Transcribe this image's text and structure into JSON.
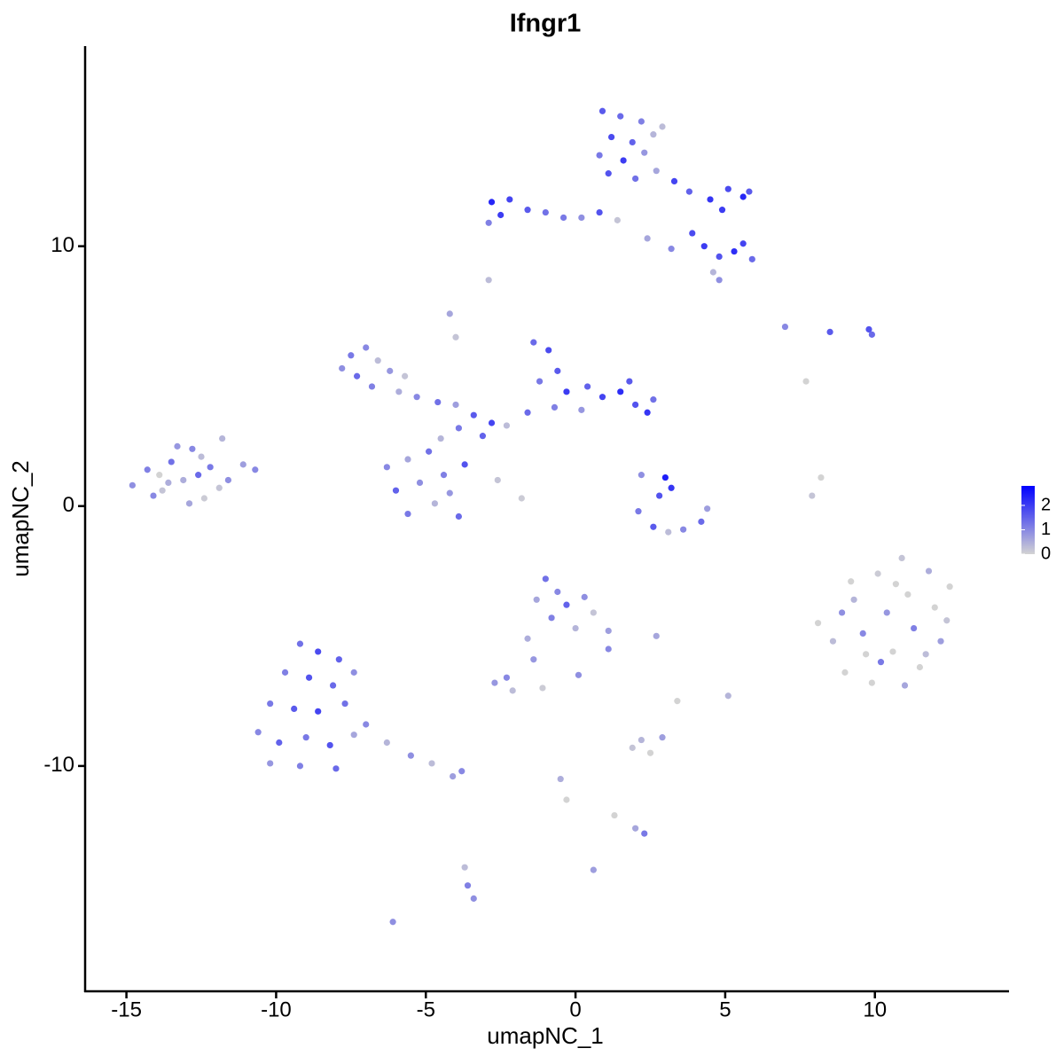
{
  "chart_data": {
    "type": "scatter",
    "title": "Ifngr1",
    "x_label": "umapNC_1",
    "y_label": "umapNC_2",
    "xlim": [
      -16.38,
      14.48
    ],
    "ylim": [
      -18.67,
      17.7
    ],
    "xticks": [
      -15,
      -10,
      -5,
      0,
      5,
      10
    ],
    "yticks": [
      -10,
      0,
      10
    ],
    "colorbar": {
      "lim": [
        0,
        2.8
      ],
      "ticks": [
        0,
        1,
        2
      ],
      "colors": [
        "#d3d3d3",
        "#0000ff"
      ]
    },
    "points": [
      {
        "x": 0.9,
        "y": 15.2,
        "value": 1.6
      },
      {
        "x": 1.5,
        "y": 15.0,
        "value": 1.4
      },
      {
        "x": 2.2,
        "y": 14.8,
        "value": 1.1
      },
      {
        "x": 1.2,
        "y": 14.2,
        "value": 1.8
      },
      {
        "x": 1.9,
        "y": 14.0,
        "value": 1.5
      },
      {
        "x": 2.6,
        "y": 14.3,
        "value": 0.4
      },
      {
        "x": 0.8,
        "y": 13.5,
        "value": 1.2
      },
      {
        "x": 1.6,
        "y": 13.3,
        "value": 2.0
      },
      {
        "x": 2.3,
        "y": 13.6,
        "value": 0.8
      },
      {
        "x": 2.9,
        "y": 14.6,
        "value": 0.3
      },
      {
        "x": 1.1,
        "y": 12.8,
        "value": 1.7
      },
      {
        "x": 2.0,
        "y": 12.6,
        "value": 1.3
      },
      {
        "x": 2.7,
        "y": 12.9,
        "value": 0.6
      },
      {
        "x": 3.3,
        "y": 12.5,
        "value": 1.9
      },
      {
        "x": 3.8,
        "y": 12.1,
        "value": 1.5
      },
      {
        "x": 4.5,
        "y": 11.8,
        "value": 2.1
      },
      {
        "x": 5.1,
        "y": 12.2,
        "value": 1.8
      },
      {
        "x": 5.6,
        "y": 11.9,
        "value": 2.3
      },
      {
        "x": 4.9,
        "y": 11.4,
        "value": 2.0
      },
      {
        "x": 5.8,
        "y": 12.1,
        "value": 1.6
      },
      {
        "x": -2.8,
        "y": 11.7,
        "value": 2.3
      },
      {
        "x": -2.5,
        "y": 11.2,
        "value": 2.0
      },
      {
        "x": -2.2,
        "y": 11.8,
        "value": 1.9
      },
      {
        "x": -1.6,
        "y": 11.4,
        "value": 1.6
      },
      {
        "x": -1.0,
        "y": 11.3,
        "value": 1.3
      },
      {
        "x": -0.4,
        "y": 11.1,
        "value": 1.2
      },
      {
        "x": 0.2,
        "y": 11.1,
        "value": 0.9
      },
      {
        "x": 0.8,
        "y": 11.3,
        "value": 1.7
      },
      {
        "x": 1.4,
        "y": 11.0,
        "value": 0.2
      },
      {
        "x": -2.9,
        "y": 10.9,
        "value": 1.1
      },
      {
        "x": 3.9,
        "y": 10.5,
        "value": 1.8
      },
      {
        "x": 4.3,
        "y": 10.0,
        "value": 2.0
      },
      {
        "x": 4.8,
        "y": 9.6,
        "value": 1.7
      },
      {
        "x": 5.3,
        "y": 9.8,
        "value": 2.2
      },
      {
        "x": 5.9,
        "y": 9.5,
        "value": 1.4
      },
      {
        "x": 5.6,
        "y": 10.1,
        "value": 1.9
      },
      {
        "x": 4.6,
        "y": 9.0,
        "value": 0.4
      },
      {
        "x": 4.8,
        "y": 8.7,
        "value": 0.9
      },
      {
        "x": 2.4,
        "y": 10.3,
        "value": 0.6
      },
      {
        "x": 3.2,
        "y": 9.9,
        "value": 1.0
      },
      {
        "x": -7.5,
        "y": 5.8,
        "value": 1.2
      },
      {
        "x": -7.0,
        "y": 6.1,
        "value": 1.0
      },
      {
        "x": -6.6,
        "y": 5.6,
        "value": 0.3
      },
      {
        "x": -7.3,
        "y": 5.0,
        "value": 1.4
      },
      {
        "x": -6.2,
        "y": 5.2,
        "value": 0.8
      },
      {
        "x": -5.7,
        "y": 5.0,
        "value": 0.2
      },
      {
        "x": -6.8,
        "y": 4.6,
        "value": 1.1
      },
      {
        "x": -5.9,
        "y": 4.4,
        "value": 0.5
      },
      {
        "x": -7.8,
        "y": 5.3,
        "value": 0.9
      },
      {
        "x": -5.3,
        "y": 4.2,
        "value": 1.0
      },
      {
        "x": -4.6,
        "y": 4.0,
        "value": 1.3
      },
      {
        "x": -4.0,
        "y": 3.9,
        "value": 0.7
      },
      {
        "x": -3.4,
        "y": 3.5,
        "value": 1.6
      },
      {
        "x": -2.8,
        "y": 3.2,
        "value": 1.9
      },
      {
        "x": -3.9,
        "y": 3.0,
        "value": 1.2
      },
      {
        "x": -4.5,
        "y": 2.6,
        "value": 0.4
      },
      {
        "x": -3.1,
        "y": 2.7,
        "value": 1.5
      },
      {
        "x": -2.3,
        "y": 3.1,
        "value": 0.3
      },
      {
        "x": -4.2,
        "y": 7.4,
        "value": 0.6
      },
      {
        "x": -4.0,
        "y": 6.5,
        "value": 0.2
      },
      {
        "x": -1.4,
        "y": 6.3,
        "value": 1.4
      },
      {
        "x": -0.9,
        "y": 6.0,
        "value": 1.8
      },
      {
        "x": -0.6,
        "y": 5.2,
        "value": 1.6
      },
      {
        "x": -1.2,
        "y": 4.8,
        "value": 1.2
      },
      {
        "x": -0.3,
        "y": 4.4,
        "value": 2.0
      },
      {
        "x": 0.4,
        "y": 4.6,
        "value": 1.5
      },
      {
        "x": 0.9,
        "y": 4.2,
        "value": 1.9
      },
      {
        "x": 1.5,
        "y": 4.4,
        "value": 2.2
      },
      {
        "x": 2.0,
        "y": 3.9,
        "value": 1.7
      },
      {
        "x": 2.4,
        "y": 3.6,
        "value": 2.1
      },
      {
        "x": 1.8,
        "y": 4.8,
        "value": 1.6
      },
      {
        "x": 2.6,
        "y": 4.1,
        "value": 1.3
      },
      {
        "x": -0.7,
        "y": 3.8,
        "value": 1.1
      },
      {
        "x": -1.6,
        "y": 3.6,
        "value": 1.4
      },
      {
        "x": 0.2,
        "y": 3.7,
        "value": 0.8
      },
      {
        "x": -6.3,
        "y": 1.5,
        "value": 1.0
      },
      {
        "x": -5.6,
        "y": 1.8,
        "value": 0.6
      },
      {
        "x": -4.9,
        "y": 2.1,
        "value": 1.3
      },
      {
        "x": -6.0,
        "y": 0.6,
        "value": 1.5
      },
      {
        "x": -5.2,
        "y": 0.9,
        "value": 0.9
      },
      {
        "x": -4.4,
        "y": 1.2,
        "value": 1.1
      },
      {
        "x": -3.7,
        "y": 1.6,
        "value": 1.7
      },
      {
        "x": -5.6,
        "y": -0.3,
        "value": 1.2
      },
      {
        "x": -4.7,
        "y": 0.1,
        "value": 0.4
      },
      {
        "x": -3.9,
        "y": -0.4,
        "value": 1.4
      },
      {
        "x": -4.2,
        "y": 0.5,
        "value": 0.8
      },
      {
        "x": -2.6,
        "y": 1.0,
        "value": 0.2
      },
      {
        "x": -1.8,
        "y": 0.3,
        "value": 0.1
      },
      {
        "x": -14.8,
        "y": 0.8,
        "value": 0.9
      },
      {
        "x": -14.3,
        "y": 1.4,
        "value": 1.1
      },
      {
        "x": -13.8,
        "y": 0.6,
        "value": 0.2
      },
      {
        "x": -13.5,
        "y": 1.7,
        "value": 1.3
      },
      {
        "x": -13.1,
        "y": 1.0,
        "value": 0.5
      },
      {
        "x": -12.8,
        "y": 2.2,
        "value": 1.0
      },
      {
        "x": -12.4,
        "y": 0.3,
        "value": 0.1
      },
      {
        "x": -12.2,
        "y": 1.5,
        "value": 1.2
      },
      {
        "x": -11.8,
        "y": 2.6,
        "value": 0.4
      },
      {
        "x": -11.6,
        "y": 1.0,
        "value": 0.9
      },
      {
        "x": -11.1,
        "y": 1.6,
        "value": 0.7
      },
      {
        "x": -10.7,
        "y": 1.4,
        "value": 1.0
      },
      {
        "x": -13.9,
        "y": 1.2,
        "value": 0.0
      },
      {
        "x": -12.9,
        "y": 0.1,
        "value": 0.6
      },
      {
        "x": -12.5,
        "y": 1.9,
        "value": 0.3
      },
      {
        "x": -13.3,
        "y": 2.3,
        "value": 0.8
      },
      {
        "x": -14.1,
        "y": 0.4,
        "value": 1.0
      },
      {
        "x": -11.9,
        "y": 0.7,
        "value": 0.2
      },
      {
        "x": -12.6,
        "y": 1.2,
        "value": 1.4
      },
      {
        "x": -13.6,
        "y": 0.9,
        "value": 0.5
      },
      {
        "x": 3.0,
        "y": 1.1,
        "value": 2.4
      },
      {
        "x": 3.2,
        "y": 0.7,
        "value": 2.1
      },
      {
        "x": 2.8,
        "y": 0.4,
        "value": 1.7
      },
      {
        "x": 2.1,
        "y": -0.2,
        "value": 1.2
      },
      {
        "x": 2.6,
        "y": -0.8,
        "value": 1.6
      },
      {
        "x": 3.1,
        "y": -1.0,
        "value": 0.3
      },
      {
        "x": 3.6,
        "y": -0.9,
        "value": 1.0
      },
      {
        "x": 4.2,
        "y": -0.6,
        "value": 1.4
      },
      {
        "x": 4.4,
        "y": -0.1,
        "value": 0.7
      },
      {
        "x": 2.2,
        "y": 1.2,
        "value": 0.9
      },
      {
        "x": 8.1,
        "y": -4.5,
        "value": 0.0
      },
      {
        "x": 8.6,
        "y": -5.2,
        "value": 0.3
      },
      {
        "x": 9.0,
        "y": -6.4,
        "value": 0.0
      },
      {
        "x": 9.3,
        "y": -3.6,
        "value": 0.4
      },
      {
        "x": 9.6,
        "y": -4.9,
        "value": 1.0
      },
      {
        "x": 9.9,
        "y": -6.8,
        "value": 0.0
      },
      {
        "x": 10.1,
        "y": -2.6,
        "value": 0.1
      },
      {
        "x": 10.4,
        "y": -4.1,
        "value": 0.8
      },
      {
        "x": 10.6,
        "y": -5.6,
        "value": 0.0
      },
      {
        "x": 10.9,
        "y": -2.0,
        "value": 0.2
      },
      {
        "x": 11.1,
        "y": -3.4,
        "value": 0.0
      },
      {
        "x": 11.3,
        "y": -4.7,
        "value": 1.1
      },
      {
        "x": 11.5,
        "y": -6.2,
        "value": 0.0
      },
      {
        "x": 11.8,
        "y": -2.5,
        "value": 0.5
      },
      {
        "x": 12.0,
        "y": -3.9,
        "value": 0.0
      },
      {
        "x": 12.2,
        "y": -5.2,
        "value": 0.7
      },
      {
        "x": 12.5,
        "y": -3.1,
        "value": 0.0
      },
      {
        "x": 9.2,
        "y": -2.9,
        "value": 0.0
      },
      {
        "x": 10.2,
        "y": -6.0,
        "value": 1.2
      },
      {
        "x": 11.7,
        "y": -5.7,
        "value": 0.3
      },
      {
        "x": 8.9,
        "y": -4.1,
        "value": 0.9
      },
      {
        "x": 10.7,
        "y": -3.0,
        "value": 0.0
      },
      {
        "x": 12.4,
        "y": -4.4,
        "value": 0.2
      },
      {
        "x": 9.7,
        "y": -5.7,
        "value": 0.0
      },
      {
        "x": 11.0,
        "y": -6.9,
        "value": 0.6
      },
      {
        "x": -9.2,
        "y": -5.3,
        "value": 1.3
      },
      {
        "x": -8.6,
        "y": -5.6,
        "value": 1.8
      },
      {
        "x": -7.9,
        "y": -5.9,
        "value": 1.5
      },
      {
        "x": -9.7,
        "y": -6.4,
        "value": 1.1
      },
      {
        "x": -8.9,
        "y": -6.6,
        "value": 1.7
      },
      {
        "x": -8.1,
        "y": -6.9,
        "value": 1.4
      },
      {
        "x": -7.4,
        "y": -6.4,
        "value": 0.9
      },
      {
        "x": -10.2,
        "y": -7.6,
        "value": 1.2
      },
      {
        "x": -9.4,
        "y": -7.8,
        "value": 1.6
      },
      {
        "x": -8.6,
        "y": -7.9,
        "value": 1.9
      },
      {
        "x": -7.7,
        "y": -7.6,
        "value": 1.3
      },
      {
        "x": -10.6,
        "y": -8.7,
        "value": 1.0
      },
      {
        "x": -9.9,
        "y": -9.1,
        "value": 1.5
      },
      {
        "x": -9.0,
        "y": -8.9,
        "value": 1.2
      },
      {
        "x": -8.2,
        "y": -9.2,
        "value": 1.7
      },
      {
        "x": -7.4,
        "y": -8.8,
        "value": 0.6
      },
      {
        "x": -10.2,
        "y": -9.9,
        "value": 0.8
      },
      {
        "x": -9.2,
        "y": -10.0,
        "value": 1.1
      },
      {
        "x": -8.0,
        "y": -10.1,
        "value": 1.4
      },
      {
        "x": -7.0,
        "y": -8.4,
        "value": 1.0
      },
      {
        "x": -6.3,
        "y": -9.1,
        "value": 0.4
      },
      {
        "x": -5.5,
        "y": -9.6,
        "value": 0.9
      },
      {
        "x": -4.8,
        "y": -9.9,
        "value": 0.3
      },
      {
        "x": -4.1,
        "y": -10.4,
        "value": 0.7
      },
      {
        "x": -3.8,
        "y": -10.2,
        "value": 1.0
      },
      {
        "x": -1.0,
        "y": -2.8,
        "value": 1.3
      },
      {
        "x": -0.6,
        "y": -3.3,
        "value": 1.0
      },
      {
        "x": -1.3,
        "y": -3.6,
        "value": 0.6
      },
      {
        "x": -0.3,
        "y": -3.8,
        "value": 1.5
      },
      {
        "x": 0.3,
        "y": -3.5,
        "value": 0.9
      },
      {
        "x": 0.6,
        "y": -4.1,
        "value": 0.2
      },
      {
        "x": -0.8,
        "y": -4.3,
        "value": 1.1
      },
      {
        "x": 0.0,
        "y": -4.7,
        "value": 0.4
      },
      {
        "x": 1.1,
        "y": -4.8,
        "value": 0.7
      },
      {
        "x": 1.1,
        "y": -5.5,
        "value": 1.0
      },
      {
        "x": -1.6,
        "y": -5.1,
        "value": 0.5
      },
      {
        "x": -1.4,
        "y": -5.9,
        "value": 0.8
      },
      {
        "x": -2.7,
        "y": -6.8,
        "value": 0.8
      },
      {
        "x": -2.1,
        "y": -7.1,
        "value": 0.3
      },
      {
        "x": -2.3,
        "y": -6.6,
        "value": 1.0
      },
      {
        "x": -1.1,
        "y": -7.0,
        "value": 0.1
      },
      {
        "x": 1.9,
        "y": -9.3,
        "value": 0.2
      },
      {
        "x": 2.5,
        "y": -9.5,
        "value": 0.0
      },
      {
        "x": 2.9,
        "y": -8.9,
        "value": 0.7
      },
      {
        "x": 2.2,
        "y": -9.0,
        "value": 0.4
      },
      {
        "x": -0.5,
        "y": -10.5,
        "value": 0.5
      },
      {
        "x": -0.3,
        "y": -11.3,
        "value": 0.0
      },
      {
        "x": 2.3,
        "y": -12.6,
        "value": 1.2
      },
      {
        "x": 2.0,
        "y": -12.4,
        "value": 0.6
      },
      {
        "x": 1.3,
        "y": -11.9,
        "value": 0.0
      },
      {
        "x": -3.6,
        "y": -14.6,
        "value": 1.1
      },
      {
        "x": -3.4,
        "y": -15.1,
        "value": 0.9
      },
      {
        "x": -3.7,
        "y": -13.9,
        "value": 0.3
      },
      {
        "x": 5.1,
        "y": -7.3,
        "value": 0.4
      },
      {
        "x": 7.9,
        "y": 0.4,
        "value": 0.2
      },
      {
        "x": 8.2,
        "y": 1.1,
        "value": 0.0
      },
      {
        "x": -2.9,
        "y": 8.7,
        "value": 0.3
      },
      {
        "x": 9.8,
        "y": 6.8,
        "value": 1.7
      },
      {
        "x": 9.9,
        "y": 6.6,
        "value": 1.4
      },
      {
        "x": 7.0,
        "y": 6.9,
        "value": 1.0
      },
      {
        "x": 8.5,
        "y": 6.7,
        "value": 1.6
      },
      {
        "x": 7.7,
        "y": 4.8,
        "value": 0.0
      },
      {
        "x": -6.1,
        "y": -16.0,
        "value": 0.9
      },
      {
        "x": 0.6,
        "y": -14.0,
        "value": 0.7
      },
      {
        "x": 3.4,
        "y": -7.5,
        "value": 0.0
      },
      {
        "x": 2.7,
        "y": -5.0,
        "value": 0.6
      },
      {
        "x": 0.1,
        "y": -6.5,
        "value": 0.9
      }
    ]
  }
}
